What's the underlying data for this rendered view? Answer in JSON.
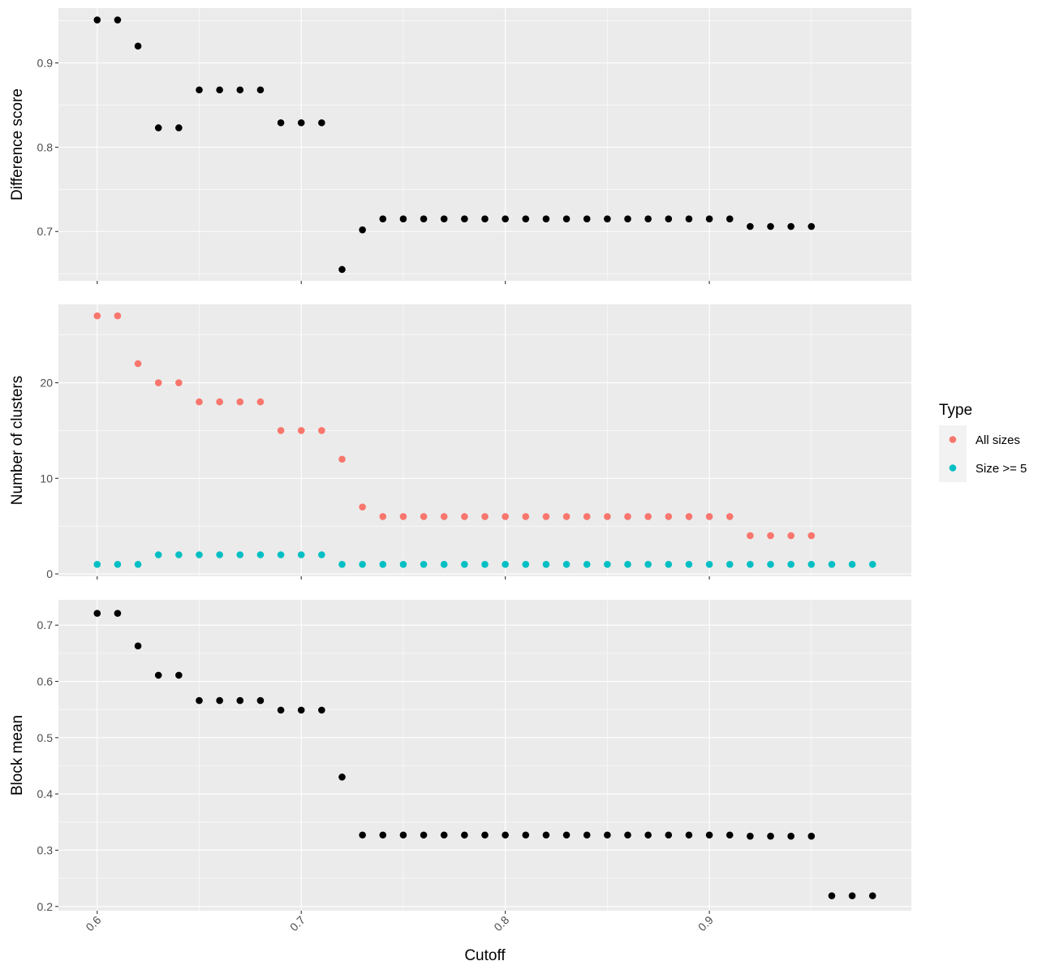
{
  "chart_data": [
    {
      "type": "scatter",
      "ylabel": "Difference score",
      "xlim": [
        0.581,
        0.999
      ],
      "ylim": [
        0.6415,
        0.965
      ],
      "y_ticks": [
        0.7,
        0.8,
        0.9
      ],
      "y_tick_labels": [
        "0.7",
        "0.8",
        "0.9"
      ],
      "grid": true,
      "series": [
        {
          "color": "#000000",
          "x": [
            0.6,
            0.61,
            0.62,
            0.63,
            0.64,
            0.65,
            0.66,
            0.67,
            0.68,
            0.69,
            0.7,
            0.71,
            0.72,
            0.73,
            0.74,
            0.75,
            0.76,
            0.77,
            0.78,
            0.79,
            0.8,
            0.81,
            0.82,
            0.83,
            0.84,
            0.85,
            0.86,
            0.87,
            0.88,
            0.89,
            0.9,
            0.91,
            0.92,
            0.93,
            0.94,
            0.95
          ],
          "y": [
            0.951,
            0.951,
            0.92,
            0.823,
            0.823,
            0.868,
            0.868,
            0.868,
            0.868,
            0.829,
            0.829,
            0.829,
            0.655,
            0.702,
            0.715,
            0.715,
            0.715,
            0.715,
            0.715,
            0.715,
            0.715,
            0.715,
            0.715,
            0.715,
            0.715,
            0.715,
            0.715,
            0.715,
            0.715,
            0.715,
            0.715,
            0.715,
            0.706,
            0.706,
            0.706,
            0.706
          ]
        }
      ]
    },
    {
      "type": "scatter",
      "ylabel": "Number of clusters",
      "xlim": [
        0.581,
        0.999
      ],
      "ylim": [
        -0.25,
        28.2
      ],
      "y_ticks": [
        0,
        10,
        20
      ],
      "y_tick_labels": [
        "0",
        "10",
        "20"
      ],
      "grid": true,
      "legend_title": "Type",
      "legend_position": "right",
      "series": [
        {
          "name": "All sizes",
          "color": "#F8766D",
          "x": [
            0.6,
            0.61,
            0.62,
            0.63,
            0.64,
            0.65,
            0.66,
            0.67,
            0.68,
            0.69,
            0.7,
            0.71,
            0.72,
            0.73,
            0.74,
            0.75,
            0.76,
            0.77,
            0.78,
            0.79,
            0.8,
            0.81,
            0.82,
            0.83,
            0.84,
            0.85,
            0.86,
            0.87,
            0.88,
            0.89,
            0.9,
            0.91,
            0.92,
            0.93,
            0.94,
            0.95
          ],
          "y": [
            27,
            27,
            22,
            20,
            20,
            18,
            18,
            18,
            18,
            15,
            15,
            15,
            12,
            7,
            6,
            6,
            6,
            6,
            6,
            6,
            6,
            6,
            6,
            6,
            6,
            6,
            6,
            6,
            6,
            6,
            6,
            6,
            4,
            4,
            4,
            4
          ]
        },
        {
          "name": "Size >= 5",
          "color": "#00BFC4",
          "x": [
            0.6,
            0.61,
            0.62,
            0.63,
            0.64,
            0.65,
            0.66,
            0.67,
            0.68,
            0.69,
            0.7,
            0.71,
            0.72,
            0.73,
            0.74,
            0.75,
            0.76,
            0.77,
            0.78,
            0.79,
            0.8,
            0.81,
            0.82,
            0.83,
            0.84,
            0.85,
            0.86,
            0.87,
            0.88,
            0.89,
            0.9,
            0.91,
            0.92,
            0.93,
            0.94,
            0.95,
            0.96,
            0.97,
            0.98
          ],
          "y": [
            1,
            1,
            1,
            2,
            2,
            2,
            2,
            2,
            2,
            2,
            2,
            2,
            1,
            1,
            1,
            1,
            1,
            1,
            1,
            1,
            1,
            1,
            1,
            1,
            1,
            1,
            1,
            1,
            1,
            1,
            1,
            1,
            1,
            1,
            1,
            1,
            1,
            1,
            1
          ]
        }
      ]
    },
    {
      "type": "scatter",
      "ylabel": "Block mean",
      "xlabel": "Cutoff",
      "xlim": [
        0.581,
        0.999
      ],
      "ylim": [
        0.1925,
        0.745
      ],
      "x_ticks": [
        0.6,
        0.7,
        0.8,
        0.9
      ],
      "x_tick_labels": [
        "0.6",
        "0.7",
        "0.8",
        "0.9"
      ],
      "y_ticks": [
        0.2,
        0.3,
        0.4,
        0.5,
        0.6,
        0.7
      ],
      "y_tick_labels": [
        "0.2",
        "0.3",
        "0.4",
        "0.5",
        "0.6",
        "0.7"
      ],
      "grid": true,
      "series": [
        {
          "color": "#000000",
          "x": [
            0.6,
            0.61,
            0.62,
            0.63,
            0.64,
            0.65,
            0.66,
            0.67,
            0.68,
            0.69,
            0.7,
            0.71,
            0.72,
            0.73,
            0.74,
            0.75,
            0.76,
            0.77,
            0.78,
            0.79,
            0.8,
            0.81,
            0.82,
            0.83,
            0.84,
            0.85,
            0.86,
            0.87,
            0.88,
            0.89,
            0.9,
            0.91,
            0.92,
            0.93,
            0.94,
            0.95,
            0.96,
            0.97,
            0.98
          ],
          "y": [
            0.721,
            0.721,
            0.663,
            0.611,
            0.611,
            0.566,
            0.566,
            0.566,
            0.566,
            0.549,
            0.549,
            0.549,
            0.43,
            0.327,
            0.327,
            0.327,
            0.327,
            0.327,
            0.327,
            0.327,
            0.327,
            0.327,
            0.327,
            0.327,
            0.327,
            0.327,
            0.327,
            0.327,
            0.327,
            0.327,
            0.327,
            0.327,
            0.325,
            0.325,
            0.325,
            0.325,
            0.219,
            0.219,
            0.219
          ]
        }
      ]
    }
  ]
}
